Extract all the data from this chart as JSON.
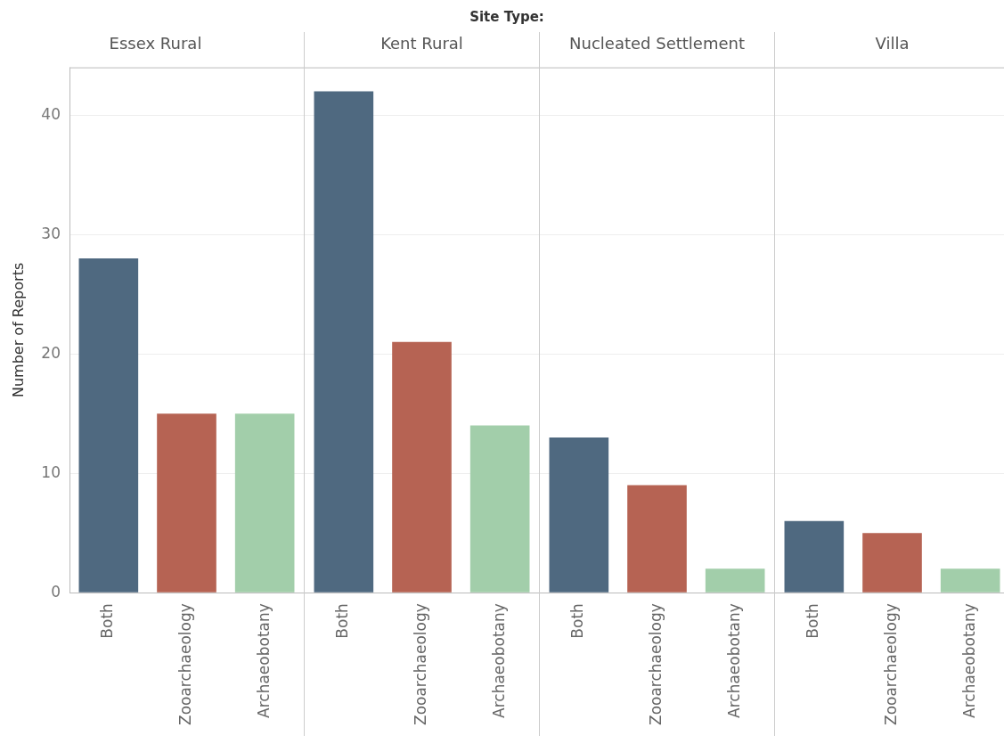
{
  "chart_data": [
    {
      "type": "bar",
      "title": "Essex Rural",
      "ylabel": "Number of Reports",
      "annotations": [
        "Site Type:"
      ],
      "categories": [
        "Both",
        "Zooarchaeology",
        "Archaeobotany"
      ],
      "values": [
        28,
        15,
        15
      ],
      "colors": [
        "#4f6980",
        "#b66353",
        "#a2ceaa"
      ],
      "ylim": [
        0,
        44
      ],
      "yticks": [
        0,
        10,
        20,
        30,
        40
      ],
      "grid": "y"
    },
    {
      "type": "bar",
      "title": "Kent Rural",
      "categories": [
        "Both",
        "Zooarchaeology",
        "Archaeobotany"
      ],
      "values": [
        42,
        21,
        14
      ],
      "colors": [
        "#4f6980",
        "#b66353",
        "#a2ceaa"
      ],
      "ylim": [
        0,
        44
      ],
      "yticks": [
        0,
        10,
        20,
        30,
        40
      ],
      "grid": "y",
      "tick_labels": "x"
    },
    {
      "type": "bar",
      "title": "Nucleated Settlement",
      "categories": [
        "Both",
        "Zooarchaeology",
        "Archaeobotany"
      ],
      "values": [
        13,
        9,
        2
      ],
      "colors": [
        "#4f6980",
        "#b66353",
        "#a2ceaa"
      ],
      "ylim": [
        0,
        44
      ],
      "yticks": [
        0,
        10,
        20,
        30,
        40
      ],
      "grid": "y",
      "tick_labels": "x"
    },
    {
      "type": "bar",
      "title": "Villa",
      "categories": [
        "Both",
        "Zooarchaeology",
        "Archaeobotany"
      ],
      "values": [
        6,
        5,
        2
      ],
      "colors": [
        "#4f6980",
        "#b66353",
        "#a2ceaa"
      ],
      "ylim": [
        0,
        44
      ],
      "yticks": [
        0,
        10,
        20,
        30,
        40
      ],
      "grid": "y",
      "tick_labels": "x"
    }
  ]
}
